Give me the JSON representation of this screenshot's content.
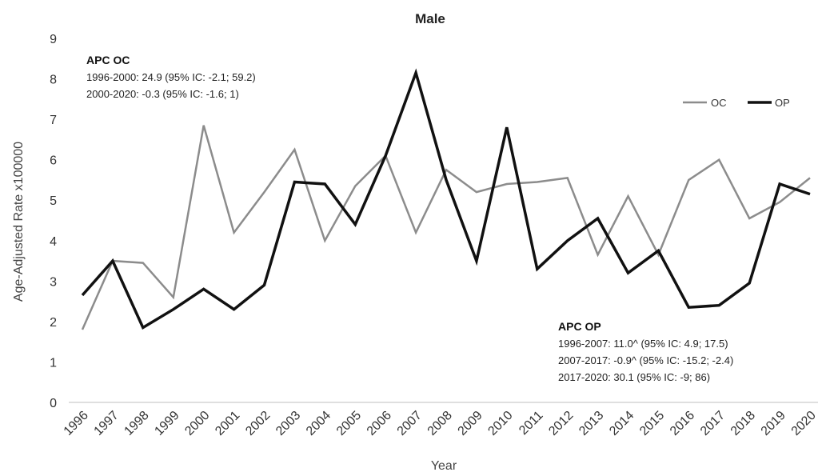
{
  "chart_data": {
    "type": "line",
    "title": "Male",
    "xlabel": "Year",
    "ylabel": "Age-Adjusted Rate x100000",
    "ylim": [
      0,
      9
    ],
    "yticks": [
      0,
      1,
      2,
      3,
      4,
      5,
      6,
      7,
      8,
      9
    ],
    "grid": false,
    "legend_position": "top-right",
    "categories": [
      "1996",
      "1997",
      "1998",
      "1999",
      "2000",
      "2001",
      "2002",
      "2003",
      "2004",
      "2005",
      "2006",
      "2007",
      "2008",
      "2009",
      "2010",
      "2011",
      "2012",
      "2013",
      "2014",
      "2015",
      "2016",
      "2017",
      "2018",
      "2019",
      "2020"
    ],
    "series": [
      {
        "name": "OC",
        "color": "#8c8c8c",
        "values": [
          1.8,
          3.5,
          3.45,
          2.6,
          6.85,
          4.2,
          5.2,
          6.25,
          4.0,
          5.35,
          6.1,
          4.2,
          5.75,
          5.2,
          5.4,
          5.45,
          5.55,
          3.65,
          5.1,
          3.65,
          5.5,
          6.0,
          4.55,
          4.95,
          5.55
        ]
      },
      {
        "name": "OP",
        "color": "#111111",
        "values": [
          2.65,
          3.5,
          1.85,
          2.3,
          2.8,
          2.3,
          2.9,
          5.45,
          5.4,
          4.4,
          6.1,
          8.15,
          5.5,
          3.5,
          6.8,
          3.3,
          4.0,
          4.55,
          3.2,
          3.75,
          2.35,
          2.4,
          2.95,
          5.4,
          5.15
        ]
      }
    ],
    "annotations": [
      {
        "heading": "APC OC",
        "lines": [
          "1996-2000: 24.9 (95% IC: -2.1; 59.2)",
          "2000-2020: -0.3 (95% IC: -1.6; 1)"
        ]
      },
      {
        "heading": "APC OP",
        "lines": [
          "1996-2007: 11.0^ (95% IC: 4.9; 17.5)",
          "2007-2017: -0.9^ (95% IC: -15.2; -2.4)",
          "2017-2020: 30.1 (95% IC: -9; 86)"
        ]
      }
    ]
  }
}
